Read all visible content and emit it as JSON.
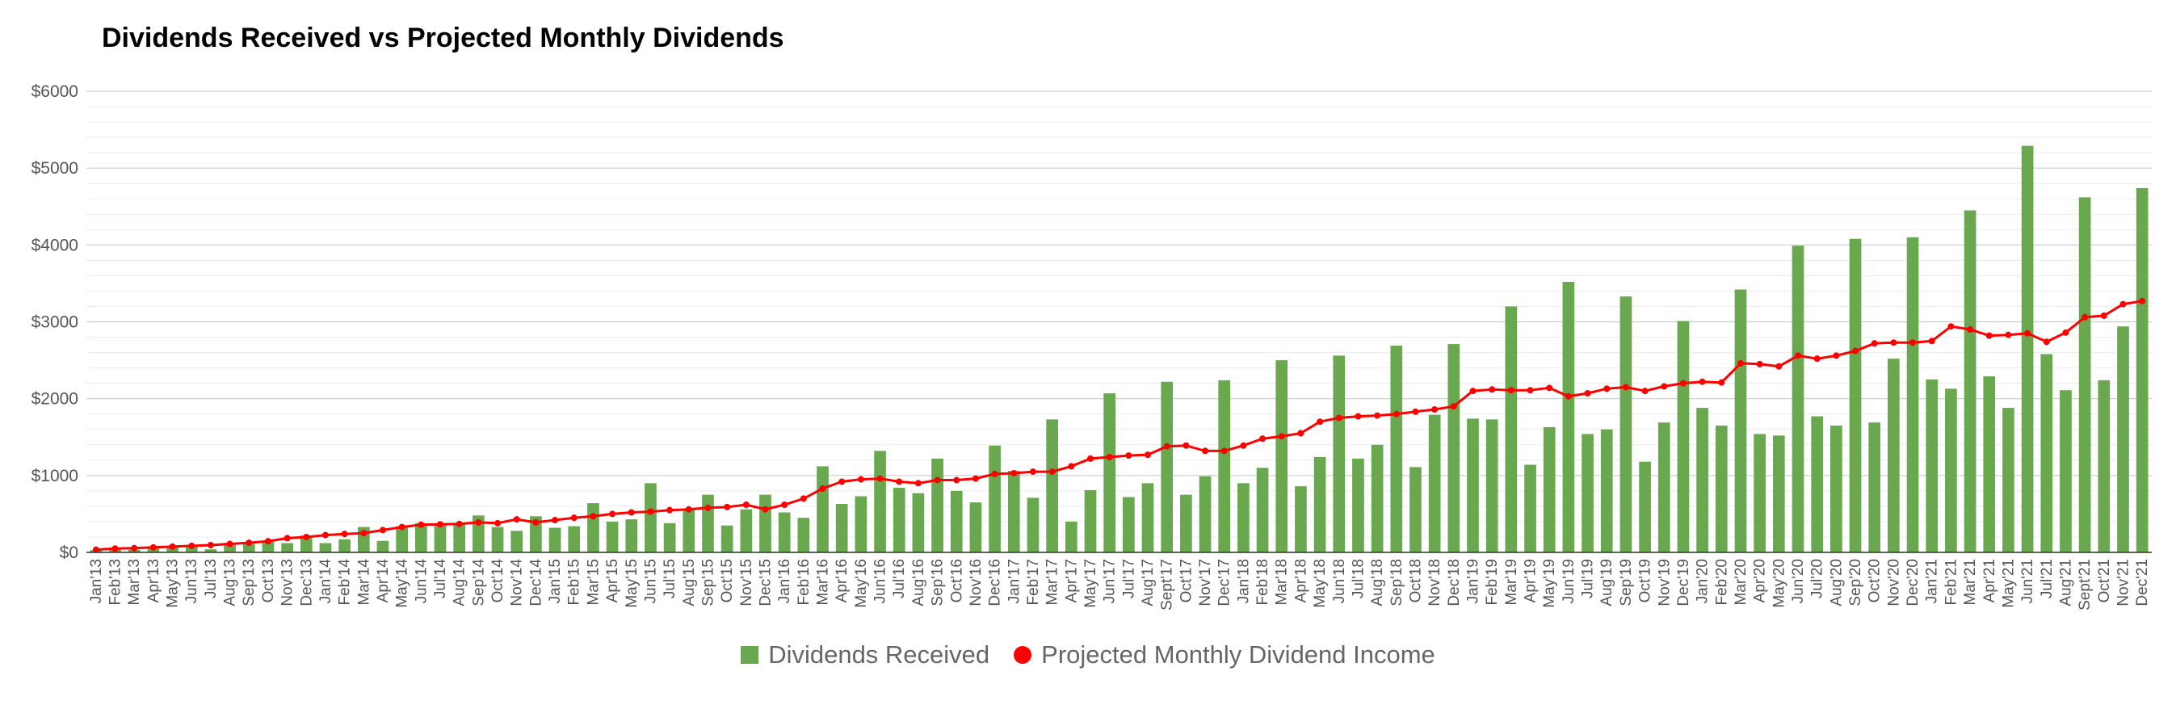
{
  "chart_data": {
    "type": "bar",
    "title": "Dividends Received vs Projected Monthly Dividends",
    "xlabel": "",
    "ylabel": "",
    "ylim": [
      0,
      6000
    ],
    "y_ticks": [
      0,
      1000,
      2000,
      3000,
      4000,
      5000,
      6000
    ],
    "y_tick_labels": [
      "$0",
      "$1000",
      "$2000",
      "$3000",
      "$4000",
      "$5000",
      "$6000"
    ],
    "legend_position": "bottom",
    "categories": [
      "Jan'13",
      "Feb'13",
      "Mar'13",
      "Apr'13",
      "May'13",
      "Jun'13",
      "Jul'13",
      "Aug'13",
      "Sep'13",
      "Oct'13",
      "Nov'13",
      "Dec'13",
      "Jan'14",
      "Feb'14",
      "Mar'14",
      "Apr'14",
      "May'14",
      "Jun'14",
      "Jul'14",
      "Aug'14",
      "Sep'14",
      "Oct'14",
      "Nov'14",
      "Dec'14",
      "Jan'15",
      "Feb'15",
      "Mar'15",
      "Apr'15",
      "May'15",
      "Jun'15",
      "Jul'15",
      "Aug'15",
      "Sep'15",
      "Oct'15",
      "Nov'15",
      "Dec'15",
      "Jan'16",
      "Feb'16",
      "Mar'16",
      "Apr'16",
      "May'16",
      "Jun'16",
      "Jul'16",
      "Aug'16",
      "Sep'16",
      "Oct'16",
      "Nov'16",
      "Dec'16",
      "Jan'17",
      "Feb'17",
      "Mar'17",
      "Apr'17",
      "May'17",
      "Jun'17",
      "Jul'17",
      "Aug'17",
      "Sep'17",
      "Oct'17",
      "Nov'17",
      "Dec'17",
      "Jan'18",
      "Feb'18",
      "Mar'18",
      "Apr'18",
      "May'18",
      "Jun'18",
      "Jul'18",
      "Aug'18",
      "Sep'18",
      "Oct'18",
      "Nov'18",
      "Dec'18",
      "Jan'19",
      "Feb'19",
      "Mar'19",
      "Apr'19",
      "May'19",
      "Jun'19",
      "Jul'19",
      "Aug'19",
      "Sep'19",
      "Oct'19",
      "Nov'19",
      "Dec'19",
      "Jan'20",
      "Feb'20",
      "Mar'20",
      "Apr'20",
      "May'20",
      "Jun'20",
      "Jul'20",
      "Aug'20",
      "Sep'20",
      "Oct'20",
      "Nov'20",
      "Dec'20",
      "Jan'21",
      "Feb'21",
      "Mar'21",
      "Apr'21",
      "May'21",
      "Jun'21",
      "Jul'21",
      "Aug'21",
      "Sep'21",
      "Oct'21",
      "Nov'21",
      "Dec'21"
    ],
    "x_tick_labels": [
      "Jan'13",
      "Feb'13",
      "Mar'13",
      "Apr'13",
      "May'13",
      "Jun'13",
      "Jul'13",
      "Aug'13",
      "Sep'13",
      "Oct'13",
      "Nov'13",
      "Dec'13",
      "Jan'14",
      "Feb'14",
      "Mar'14",
      "Apr'14",
      "May'14",
      "Jun'14",
      "Jul'14",
      "Aug'14",
      "Sep'14",
      "Oct'14",
      "Nov'14",
      "Dec'14",
      "Jan'15",
      "Feb'15",
      "Mar'15",
      "Apr'15",
      "May'15",
      "Jun'15",
      "Jul'15",
      "Aug'15",
      "Sep'15",
      "Oct'15",
      "Nov'15",
      "Dec'15",
      "Jan'16",
      "Feb'16",
      "Mar'16",
      "Apr'16",
      "May'16",
      "Jun'16",
      "Jul'16",
      "Aug'16",
      "Sep'16",
      "Oct'16",
      "Nov'16",
      "Dec'16",
      "Jan'17",
      "Feb'17",
      "Mar'17",
      "Apr'17",
      "May'17",
      "Jun'17",
      "Jul'17",
      "Aug'17",
      "Sept'17",
      "Oct'17",
      "Nov'17",
      "Dec'17",
      "Jan'18",
      "Feb'18",
      "Mar'18",
      "Apr'18",
      "May'18",
      "Jun'18",
      "Jul'18",
      "Aug'18",
      "Sep'18",
      "Oct'18",
      "Nov'18",
      "Dec'18",
      "Jan'19",
      "Feb'19",
      "Mar'19",
      "Apr'19",
      "May'19",
      "Jun'19",
      "Jul'19",
      "Aug'19",
      "Sep'19",
      "Oct'19",
      "Nov'19",
      "Dec'19",
      "Jan'20",
      "Feb'20",
      "Mar'20",
      "Apr'20",
      "May'20",
      "Jun'20",
      "Jul'20",
      "Aug'20",
      "Sep'20",
      "Oct'20",
      "Nov'20",
      "Dec'20",
      "Jan'21",
      "Feb'21",
      "Mar'21",
      "Apr'21",
      "May'21",
      "Jun'21",
      "Jul'21",
      "Aug'21",
      "Sept'21",
      "Oct'21",
      "Nov'21",
      "Dec'21"
    ],
    "series": [
      {
        "name": "Dividends Received",
        "type": "bar",
        "color": "#6aa84f",
        "values": [
          30,
          40,
          35,
          70,
          85,
          95,
          40,
          125,
          110,
          140,
          120,
          220,
          120,
          170,
          330,
          150,
          340,
          380,
          370,
          370,
          480,
          330,
          280,
          470,
          320,
          340,
          640,
          400,
          430,
          900,
          380,
          560,
          750,
          350,
          560,
          750,
          520,
          450,
          1120,
          630,
          730,
          1320,
          840,
          770,
          1220,
          800,
          650,
          1390,
          1060,
          710,
          1730,
          400,
          810,
          2070,
          720,
          900,
          2220,
          750,
          990,
          2240,
          900,
          1100,
          2500,
          860,
          1240,
          2560,
          1220,
          1400,
          2690,
          1110,
          1790,
          2710,
          1740,
          1730,
          3200,
          1140,
          1630,
          3520,
          1540,
          1600,
          3330,
          1180,
          1690,
          3010,
          1880,
          1650,
          3420,
          1540,
          1520,
          3990,
          1770,
          1650,
          4080,
          1690,
          2520,
          4100,
          2250,
          2130,
          4450,
          2290,
          1880,
          5290,
          2580,
          2110,
          4620,
          2240,
          2940,
          4740
        ]
      },
      {
        "name": "Projected Monthly Dividend Income",
        "type": "line",
        "color": "#ff0000",
        "values": [
          35,
          50,
          55,
          65,
          75,
          85,
          95,
          110,
          125,
          145,
          185,
          200,
          225,
          240,
          250,
          290,
          330,
          360,
          365,
          370,
          390,
          380,
          430,
          390,
          420,
          450,
          470,
          500,
          520,
          530,
          550,
          560,
          580,
          590,
          620,
          560,
          620,
          700,
          830,
          920,
          950,
          960,
          920,
          900,
          940,
          940,
          960,
          1020,
          1030,
          1050,
          1050,
          1120,
          1220,
          1240,
          1260,
          1270,
          1380,
          1390,
          1320,
          1320,
          1390,
          1480,
          1510,
          1550,
          1700,
          1750,
          1770,
          1780,
          1800,
          1830,
          1860,
          1900,
          2100,
          2120,
          2110,
          2110,
          2140,
          2030,
          2070,
          2130,
          2150,
          2100,
          2160,
          2200,
          2220,
          2210,
          2460,
          2450,
          2420,
          2560,
          2520,
          2560,
          2620,
          2720,
          2730,
          2730,
          2750,
          2940,
          2900,
          2820,
          2830,
          2850,
          2740,
          2860,
          3060,
          3080,
          3230,
          3270
        ]
      }
    ]
  }
}
